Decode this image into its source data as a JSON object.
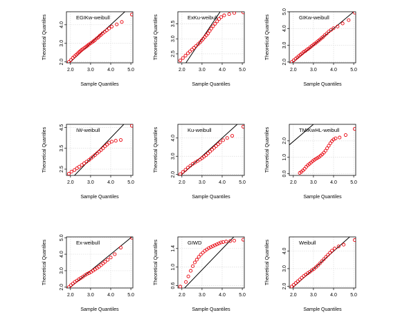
{
  "figure": {
    "type": "qqplot-grid",
    "rows": 3,
    "cols": 3,
    "x_axis_label": "Sample Quantiles",
    "y_axis_label": "Theoretical Quantiles"
  },
  "colors": {
    "points": "#e8000b",
    "line": "#000000",
    "grid": "#dcdcdc",
    "axis": "#000000"
  },
  "chart_data": [
    {
      "type": "scatter",
      "title": "EGIKw-weibull",
      "xlabel": "Sample Quantiles",
      "ylabel": "Theoretical Quantiles",
      "xlim": [
        1.8,
        5.1
      ],
      "ylim": [
        1.95,
        4.7
      ],
      "xticks": [
        "2.0",
        "3.0",
        "4.0",
        "5.0"
      ],
      "yticks": [
        "2.0",
        "3.0",
        "4.0"
      ],
      "reference_line": [
        [
          1.8,
          1.8
        ],
        [
          4.9,
          4.9
        ]
      ],
      "series": [
        {
          "name": "sample",
          "x": [
            1.92,
            2.02,
            2.12,
            2.2,
            2.28,
            2.35,
            2.42,
            2.48,
            2.55,
            2.62,
            2.7,
            2.78,
            2.85,
            2.92,
            3.0,
            3.08,
            3.15,
            3.22,
            3.3,
            3.38,
            3.45,
            3.52,
            3.6,
            3.7,
            3.8,
            3.92,
            4.05,
            4.3,
            4.55,
            5.05
          ],
          "y": [
            2.0,
            2.1,
            2.22,
            2.3,
            2.38,
            2.45,
            2.52,
            2.58,
            2.64,
            2.7,
            2.76,
            2.82,
            2.88,
            2.94,
            3.0,
            3.06,
            3.12,
            3.18,
            3.26,
            3.32,
            3.4,
            3.46,
            3.54,
            3.62,
            3.7,
            3.8,
            3.9,
            4.02,
            4.15,
            4.55
          ]
        }
      ]
    },
    {
      "type": "scatter",
      "title": "ExKu-weibull",
      "xlabel": "Sample Quantiles",
      "ylabel": "Theoretical Quantiles",
      "xlim": [
        1.8,
        5.1
      ],
      "ylim": [
        2.2,
        3.9
      ],
      "xticks": [
        "2.0",
        "3.0",
        "4.0",
        "5.0"
      ],
      "yticks": [
        "2.5",
        "3.0",
        "3.5"
      ],
      "reference_line": [
        [
          2.2,
          2.2
        ],
        [
          3.95,
          3.95
        ]
      ],
      "series": [
        {
          "name": "sample",
          "x": [
            1.92,
            2.05,
            2.18,
            2.3,
            2.4,
            2.5,
            2.6,
            2.7,
            2.8,
            2.9,
            2.98,
            3.06,
            3.14,
            3.22,
            3.3,
            3.38,
            3.46,
            3.55,
            3.65,
            3.75,
            3.85,
            3.95,
            4.1,
            4.35,
            4.6,
            5.05
          ],
          "y": [
            2.28,
            2.36,
            2.44,
            2.52,
            2.58,
            2.64,
            2.7,
            2.76,
            2.82,
            2.88,
            2.94,
            3.0,
            3.06,
            3.12,
            3.18,
            3.26,
            3.34,
            3.42,
            3.5,
            3.58,
            3.66,
            3.72,
            3.78,
            3.82,
            3.86,
            3.88
          ]
        }
      ]
    },
    {
      "type": "scatter",
      "title": "GIKw-weibull",
      "xlabel": "Sample Quantiles",
      "ylabel": "Theoretical Quantiles",
      "xlim": [
        1.8,
        5.1
      ],
      "ylim": [
        1.95,
        5.0
      ],
      "xticks": [
        "2.0",
        "3.0",
        "4.0",
        "5.0"
      ],
      "yticks": [
        "2.0",
        "3.0",
        "4.0",
        "5.0"
      ],
      "reference_line": [
        [
          1.8,
          1.8
        ],
        [
          5.1,
          5.1
        ]
      ],
      "series": [
        {
          "name": "sample",
          "x": [
            1.92,
            2.02,
            2.12,
            2.2,
            2.28,
            2.36,
            2.44,
            2.52,
            2.6,
            2.68,
            2.76,
            2.84,
            2.92,
            3.0,
            3.08,
            3.16,
            3.24,
            3.32,
            3.4,
            3.48,
            3.56,
            3.66,
            3.76,
            3.88,
            4.0,
            4.2,
            4.45,
            4.75,
            5.05
          ],
          "y": [
            2.0,
            2.1,
            2.2,
            2.28,
            2.36,
            2.44,
            2.52,
            2.6,
            2.66,
            2.74,
            2.8,
            2.88,
            2.96,
            3.04,
            3.1,
            3.18,
            3.26,
            3.34,
            3.42,
            3.5,
            3.6,
            3.7,
            3.82,
            3.92,
            4.02,
            4.12,
            4.3,
            4.5,
            4.95
          ]
        }
      ]
    },
    {
      "type": "scatter",
      "title": "IW-weibull",
      "xlabel": "Sample Quantiles",
      "ylabel": "Theoretical Quantiles",
      "xlim": [
        1.8,
        5.1
      ],
      "ylim": [
        2.2,
        4.65
      ],
      "xticks": [
        "2.0",
        "3.0",
        "4.0",
        "5.0"
      ],
      "yticks": [
        "2.5",
        "3.5",
        "4.5"
      ],
      "reference_line": [
        [
          2.1,
          2.1
        ],
        [
          4.75,
          4.75
        ]
      ],
      "series": [
        {
          "name": "sample",
          "x": [
            1.92,
            2.05,
            2.2,
            2.32,
            2.44,
            2.56,
            2.68,
            2.8,
            2.92,
            3.02,
            3.12,
            3.22,
            3.32,
            3.42,
            3.52,
            3.62,
            3.72,
            3.82,
            3.92,
            4.05,
            4.25,
            4.5,
            5.05
          ],
          "y": [
            2.28,
            2.38,
            2.46,
            2.54,
            2.62,
            2.7,
            2.78,
            2.86,
            2.94,
            3.02,
            3.1,
            3.18,
            3.26,
            3.34,
            3.42,
            3.5,
            3.6,
            3.68,
            3.76,
            3.82,
            3.86,
            3.9,
            4.58
          ]
        }
      ]
    },
    {
      "type": "scatter",
      "title": "Ku-weibull",
      "xlabel": "Sample Quantiles",
      "ylabel": "Theoretical Quantiles",
      "xlim": [
        1.8,
        5.1
      ],
      "ylim": [
        1.95,
        4.75
      ],
      "xticks": [
        "2.0",
        "3.0",
        "4.0",
        "5.0"
      ],
      "yticks": [
        "2.0",
        "3.0",
        "4.0"
      ],
      "reference_line": [
        [
          1.8,
          1.8
        ],
        [
          4.8,
          4.8
        ]
      ],
      "series": [
        {
          "name": "sample",
          "x": [
            1.92,
            2.05,
            2.18,
            2.3,
            2.42,
            2.54,
            2.66,
            2.78,
            2.9,
            3.0,
            3.1,
            3.2,
            3.3,
            3.4,
            3.5,
            3.6,
            3.7,
            3.8,
            3.9,
            4.05,
            4.25,
            4.5,
            5.05
          ],
          "y": [
            2.02,
            2.14,
            2.26,
            2.38,
            2.48,
            2.58,
            2.66,
            2.74,
            2.82,
            2.9,
            2.98,
            3.06,
            3.16,
            3.26,
            3.36,
            3.46,
            3.56,
            3.66,
            3.76,
            3.88,
            4.0,
            4.12,
            4.62
          ]
        }
      ]
    },
    {
      "type": "scatter",
      "title": "TMIKwHL-weibull",
      "xlabel": "Sample Quantiles",
      "ylabel": "Theoretical Quantiles",
      "xlim": [
        1.8,
        5.1
      ],
      "ylim": [
        -0.1,
        3.0
      ],
      "xticks": [
        "2.0",
        "3.0",
        "4.0",
        "5.0"
      ],
      "yticks": [
        "0.0",
        "1.0",
        "2.0"
      ],
      "reference_line": [
        [
          1.8,
          1.75
        ],
        [
          3.0,
          3.0
        ]
      ],
      "series": [
        {
          "name": "sample",
          "x": [
            2.32,
            2.4,
            2.48,
            2.56,
            2.64,
            2.72,
            2.8,
            2.88,
            2.96,
            3.04,
            3.12,
            3.2,
            3.28,
            3.36,
            3.44,
            3.52,
            3.6,
            3.68,
            3.76,
            3.84,
            3.92,
            4.0,
            4.1,
            4.3,
            4.6,
            5.05
          ],
          "y": [
            0.05,
            0.12,
            0.2,
            0.3,
            0.42,
            0.52,
            0.6,
            0.68,
            0.76,
            0.84,
            0.9,
            0.96,
            1.02,
            1.1,
            1.18,
            1.28,
            1.4,
            1.55,
            1.7,
            1.85,
            1.98,
            2.08,
            2.15,
            2.2,
            2.35,
            2.72
          ]
        }
      ]
    },
    {
      "type": "scatter",
      "title": "Ex-weibull",
      "xlabel": "Sample Quantiles",
      "ylabel": "Theoretical Quantiles",
      "xlim": [
        1.8,
        5.1
      ],
      "ylim": [
        1.95,
        5.05
      ],
      "xticks": [
        "2.0",
        "3.0",
        "4.0",
        "5.0"
      ],
      "yticks": [
        "2.0",
        "3.0",
        "4.0",
        "5.0"
      ],
      "reference_line": [
        [
          1.8,
          1.8
        ],
        [
          5.1,
          5.1
        ]
      ],
      "series": [
        {
          "name": "sample",
          "x": [
            1.92,
            2.02,
            2.12,
            2.22,
            2.32,
            2.42,
            2.52,
            2.62,
            2.72,
            2.82,
            2.92,
            3.02,
            3.12,
            3.22,
            3.32,
            3.42,
            3.52,
            3.62,
            3.72,
            3.85,
            4.0,
            4.2,
            4.5,
            5.05
          ],
          "y": [
            2.0,
            2.12,
            2.22,
            2.32,
            2.4,
            2.48,
            2.56,
            2.64,
            2.72,
            2.8,
            2.86,
            2.92,
            3.0,
            3.08,
            3.16,
            3.24,
            3.34,
            3.44,
            3.54,
            3.66,
            3.8,
            4.0,
            4.4,
            5.0
          ]
        }
      ]
    },
    {
      "type": "scatter",
      "title": "GIWD",
      "xlabel": "Sample Quantiles",
      "ylabel": "Theoretical Quantiles",
      "xlim": [
        1.8,
        5.1
      ],
      "ylim": [
        0.55,
        1.65
      ],
      "xticks": [
        "2.0",
        "3.0",
        "4.0",
        "5.0"
      ],
      "yticks": [
        "0.6",
        "1.0",
        "1.4"
      ],
      "reference_line": [
        [
          1.8,
          0.4
        ],
        [
          4.8,
          1.75
        ]
      ],
      "series": [
        {
          "name": "sample",
          "x": [
            1.92,
            2.2,
            2.32,
            2.44,
            2.54,
            2.64,
            2.74,
            2.84,
            2.94,
            3.04,
            3.14,
            3.24,
            3.34,
            3.44,
            3.54,
            3.64,
            3.74,
            3.84,
            3.94,
            4.05,
            4.2,
            4.4,
            4.6,
            5.05
          ],
          "y": [
            0.58,
            0.68,
            0.8,
            0.92,
            1.02,
            1.1,
            1.16,
            1.22,
            1.27,
            1.31,
            1.35,
            1.38,
            1.41,
            1.43,
            1.45,
            1.47,
            1.49,
            1.51,
            1.53,
            1.54,
            1.55,
            1.56,
            1.57,
            1.59
          ]
        }
      ]
    },
    {
      "type": "scatter",
      "title": "Weibull",
      "xlabel": "Sample Quantiles",
      "ylabel": "Theoretical Quantiles",
      "xlim": [
        1.8,
        5.1
      ],
      "ylim": [
        1.9,
        4.8
      ],
      "xticks": [
        "2.0",
        "3.0",
        "4.0",
        "5.0"
      ],
      "yticks": [
        "2.0",
        "3.0",
        "4.0"
      ],
      "reference_line": [
        [
          1.8,
          1.75
        ],
        [
          4.9,
          4.9
        ]
      ],
      "series": [
        {
          "name": "sample",
          "x": [
            1.92,
            2.02,
            2.12,
            2.22,
            2.32,
            2.42,
            2.52,
            2.62,
            2.72,
            2.82,
            2.92,
            3.02,
            3.12,
            3.22,
            3.32,
            3.42,
            3.52,
            3.62,
            3.72,
            3.82,
            3.92,
            4.05,
            4.25,
            4.5,
            5.05
          ],
          "y": [
            1.98,
            2.08,
            2.18,
            2.28,
            2.38,
            2.48,
            2.58,
            2.66,
            2.74,
            2.82,
            2.9,
            2.98,
            3.08,
            3.18,
            3.3,
            3.42,
            3.54,
            3.66,
            3.78,
            3.9,
            4.02,
            4.14,
            4.26,
            4.36,
            4.62
          ]
        }
      ]
    }
  ]
}
